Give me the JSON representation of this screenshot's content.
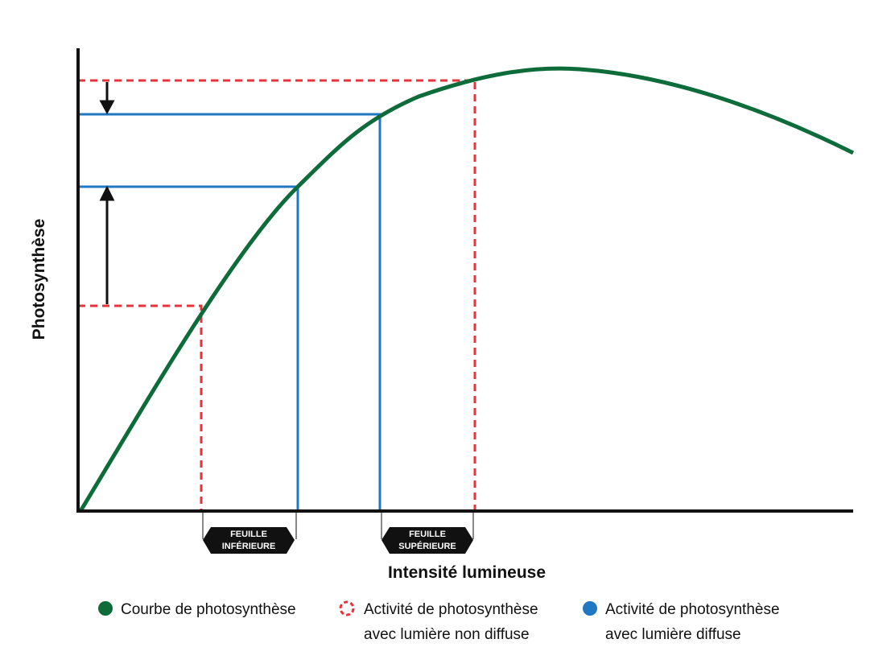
{
  "axes": {
    "y_label": "Photosynthèse",
    "x_label": "Intensité lumineuse"
  },
  "leaf_labels": [
    [
      "FEUILLE",
      "INFÉRIEURE"
    ],
    [
      "FEUILLE",
      "SUPÉRIEURE"
    ]
  ],
  "legend": [
    {
      "lines": [
        "Courbe de photosynthèse"
      ]
    },
    {
      "lines": [
        "Activité de photosynthèse",
        "avec lumière non diffuse"
      ]
    },
    {
      "lines": [
        "Activité de photosynthèse",
        "avec lumière diffuse"
      ]
    }
  ]
}
